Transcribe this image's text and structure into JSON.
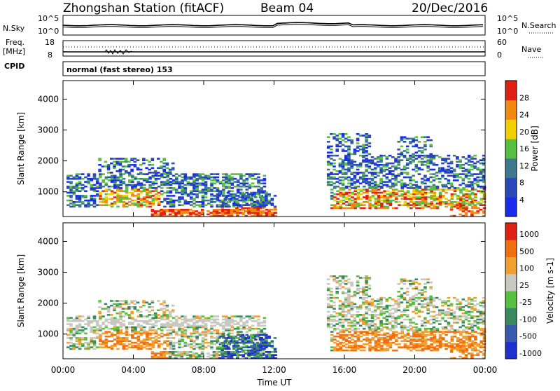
{
  "header": {
    "station": "Zhongshan Station (fitACF)",
    "beam": "Beam 04",
    "date": "20/Dec/2016"
  },
  "panels_top": {
    "nsky_label": "N.Sky",
    "nsky_ticks": [
      "10^5",
      "10^0"
    ],
    "nsearch_label": "N.Search",
    "nsearch_ticks": [
      "10^5",
      "10^0"
    ],
    "freq_label_1": "Freq.",
    "freq_label_2": "[MHz]",
    "freq_ticks": [
      "18",
      "8"
    ],
    "nave_label": "Nave",
    "nave_ticks": [
      "60",
      "0"
    ],
    "cpid_label": "CPID",
    "cpid_text": "normal (fast stereo) 153"
  },
  "chart_data": [
    {
      "type": "heatmap",
      "name": "power",
      "ylabel": "Slant Range [km]",
      "yticks": [
        "1000",
        "2000",
        "3000",
        "4000"
      ],
      "ylim": [
        200,
        4600
      ],
      "xlim": [
        0,
        24
      ],
      "xlabel": "",
      "colorbar_label": "Power [dB]",
      "colorbar_ticks": [
        "4",
        "8",
        "12",
        "16",
        "20",
        "24",
        "28"
      ],
      "colorbar_colors": [
        "#1a2bf0",
        "#2a49b8",
        "#3c7a8c",
        "#58c040",
        "#f0d000",
        "#f08a10",
        "#e02010"
      ]
    },
    {
      "type": "heatmap",
      "name": "velocity",
      "ylabel": "Slant Range [km]",
      "yticks": [
        "1000",
        "2000",
        "3000",
        "4000"
      ],
      "ylim": [
        200,
        4600
      ],
      "xlim": [
        0,
        24
      ],
      "xlabel": "Time UT",
      "xticks": [
        "00:00",
        "04:00",
        "08:00",
        "12:00",
        "16:00",
        "20:00",
        "00:00"
      ],
      "colorbar_label": "Velocity [m s-1]",
      "colorbar_ticks": [
        "1000",
        "500",
        "100",
        "25",
        "-25",
        "-100",
        "-500",
        "-1000"
      ],
      "colorbar_colors": [
        "#2030d0",
        "#3a5ab0",
        "#3a8a60",
        "#58c040",
        "#c8c8c0",
        "#f0a030",
        "#f07010",
        "#e02010"
      ]
    }
  ]
}
